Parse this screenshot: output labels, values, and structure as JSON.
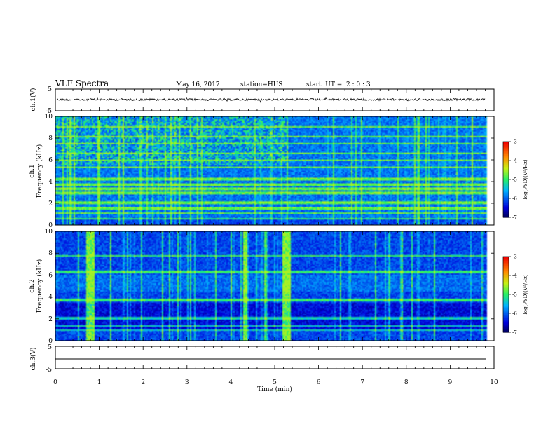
{
  "header": {
    "title": "VLF Spectra",
    "date": "May 16, 2017",
    "station": "station=HUS",
    "start": "start  UT =  2 : 0 : 3"
  },
  "colors": {
    "spectrogram_base": "#0a1fb8",
    "spectrogram_dark": "#000033",
    "line_green": "#3cf06a",
    "signal_cyan": "#20d8e8",
    "waveform": "#000000"
  },
  "chart_data": [
    {
      "type": "line",
      "panel": "ch1-waveform",
      "ylabel": "ch.1(V)",
      "ylim": [
        -5,
        5
      ],
      "yticks": [
        "5",
        "-5"
      ],
      "x": [
        0,
        9.8
      ],
      "y_mean": 0
    },
    {
      "type": "heatmap",
      "panel": "ch1-spectrogram",
      "ylabel": "ch.1\nFrequency (kHz)",
      "ylim": [
        0,
        10
      ],
      "yticks": [
        "0",
        "2",
        "4",
        "6",
        "8",
        "10"
      ],
      "xlim": [
        0,
        10
      ],
      "colorbar": {
        "label": "log(PSD)(V²/Hz)",
        "range": [
          -7,
          -3
        ],
        "ticks": [
          "-3",
          "-4",
          "-5",
          "-6",
          "-7"
        ]
      },
      "horizontal_lines_khz": [
        0.5,
        1.0,
        1.5,
        2.0,
        2.9,
        3.3,
        3.7,
        4.2,
        5.3,
        6.0,
        6.6,
        7.5,
        8.2,
        9.1
      ],
      "emissions": "broadband upper 6-10 kHz in first half"
    },
    {
      "type": "heatmap",
      "panel": "ch2-spectrogram",
      "ylabel": "ch.2\nFrequency (kHz)",
      "ylim": [
        0,
        10
      ],
      "yticks": [
        "0",
        "2",
        "4",
        "6",
        "8",
        "10"
      ],
      "xlim": [
        0,
        10
      ],
      "colorbar": {
        "label": "log(PSD)(V²/Hz)",
        "range": [
          -7,
          -3
        ],
        "ticks": [
          "-3",
          "-4",
          "-5",
          "-6",
          "-7"
        ]
      },
      "horizontal_lines_khz": [
        0.9,
        1.3,
        2.0,
        3.7,
        6.3,
        7.8
      ],
      "vertical_bursts_min": [
        0.75,
        0.82,
        4.3,
        5.2,
        5.3
      ]
    },
    {
      "type": "line",
      "panel": "ch3-waveform",
      "ylabel": "ch.3(V)",
      "ylim": [
        -5,
        5
      ],
      "yticks": [
        "5",
        "-5"
      ],
      "x": [
        0,
        9.8
      ],
      "y_mean": 0
    }
  ],
  "xaxis": {
    "label": "Time (min)",
    "ticks": [
      "0",
      "1",
      "2",
      "3",
      "4",
      "5",
      "6",
      "7",
      "8",
      "9",
      "10"
    ]
  }
}
